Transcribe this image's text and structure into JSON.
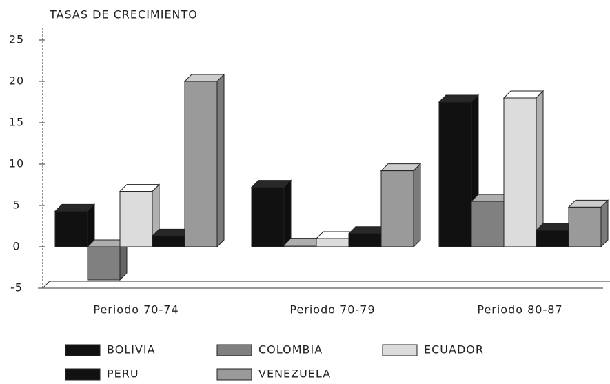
{
  "chart_data": {
    "type": "bar3d",
    "title": "TASAS DE CRECIMIENTO",
    "categories": [
      "Periodo 70-74",
      "Periodo 70-79",
      "Periodo 80-87"
    ],
    "series": [
      {
        "name": "BOLIVIA",
        "color": "#111111",
        "values": [
          4.3,
          7.2,
          17.5
        ]
      },
      {
        "name": "COLOMBIA",
        "color": "#808080",
        "values": [
          -4,
          0.2,
          5.5
        ]
      },
      {
        "name": "ECUADOR",
        "color": "#dcdcdc",
        "values": [
          6.7,
          1,
          18
        ]
      },
      {
        "name": "PERU",
        "color": "#111111",
        "values": [
          1.3,
          1.6,
          2
        ]
      },
      {
        "name": "VENEZUELA",
        "color": "#9a9a9a",
        "values": [
          20,
          9.2,
          4.8
        ]
      }
    ],
    "ylim": [
      -5,
      25
    ],
    "yticks": [
      -5,
      0,
      5,
      10,
      15,
      20,
      25
    ]
  }
}
